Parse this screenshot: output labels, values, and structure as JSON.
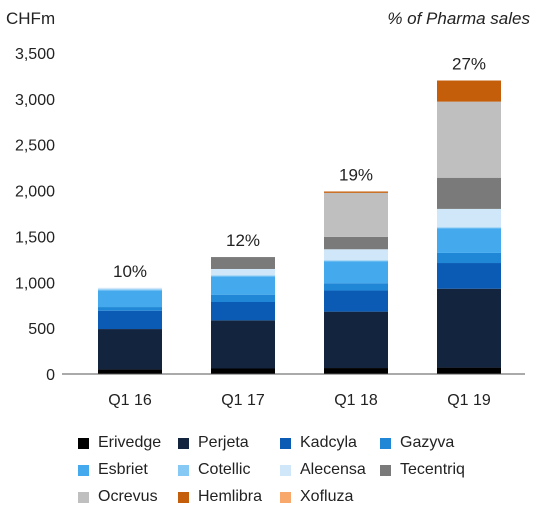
{
  "chart_data": {
    "type": "bar",
    "stacked": true,
    "title": "",
    "ylabel": "CHFm",
    "y2label": "% of Pharma sales",
    "ylim": [
      0,
      3500
    ],
    "yticks": [
      "0",
      "500",
      "1,000",
      "1,500",
      "2,000",
      "2,500",
      "3,000",
      "3,500"
    ],
    "ytick_values": [
      0,
      500,
      1000,
      1500,
      2000,
      2500,
      3000,
      3500
    ],
    "grid": false,
    "legend_position": "bottom",
    "categories": [
      "Q1 16",
      "Q1 17",
      "Q1 18",
      "Q1 19"
    ],
    "pct_labels": [
      "10%",
      "12%",
      "19%",
      "27%"
    ],
    "series": [
      {
        "name": "Erivedge",
        "color": "#000000",
        "values": [
          50,
          60,
          65,
          70
        ]
      },
      {
        "name": "Perjeta",
        "color": "#13243f",
        "values": [
          440,
          525,
          615,
          860
        ]
      },
      {
        "name": "Kadcyla",
        "color": "#0b5bb5",
        "values": [
          200,
          200,
          230,
          280
        ]
      },
      {
        "name": "Gazyva",
        "color": "#1f87d6",
        "values": [
          40,
          80,
          80,
          110
        ]
      },
      {
        "name": "Esbriet",
        "color": "#45a9ee",
        "values": [
          180,
          200,
          240,
          270
        ]
      },
      {
        "name": "Cotellic",
        "color": "#86c9f4",
        "values": [
          15,
          10,
          10,
          10
        ]
      },
      {
        "name": "Alecensa",
        "color": "#cfe7f8",
        "values": [
          15,
          70,
          120,
          200
        ]
      },
      {
        "name": "Tecentriq",
        "color": "#7a7a7a",
        "values": [
          0,
          130,
          135,
          340
        ]
      },
      {
        "name": "Ocrevus",
        "color": "#bfbfbf",
        "values": [
          0,
          0,
          480,
          830
        ]
      },
      {
        "name": "Hemlibra",
        "color": "#c55e0b",
        "values": [
          0,
          0,
          15,
          230
        ]
      },
      {
        "name": "Xofluza",
        "color": "#f7a86a",
        "values": [
          0,
          0,
          0,
          0
        ]
      }
    ]
  }
}
